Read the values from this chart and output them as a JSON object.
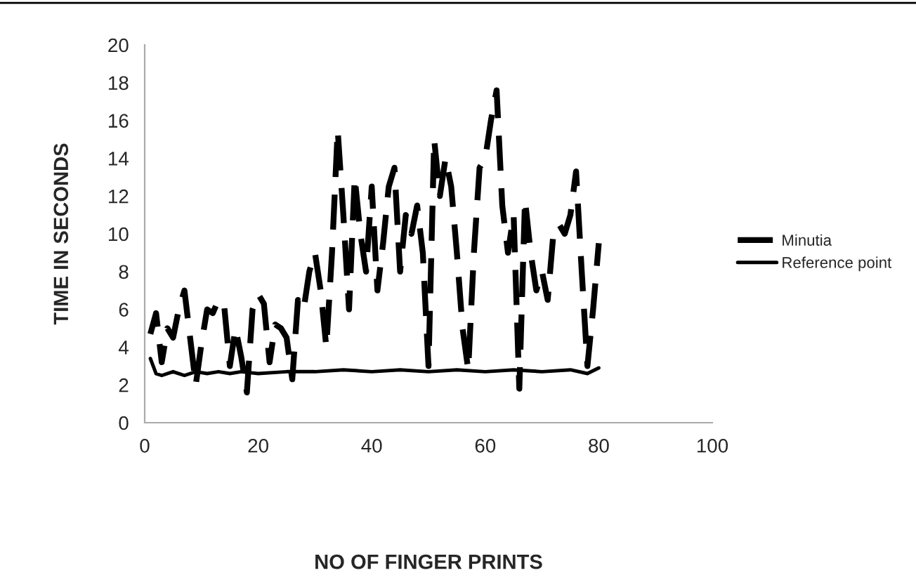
{
  "chart_data": {
    "type": "line",
    "xlabel": "NO OF FINGER PRINTS",
    "ylabel": "TIME IN SECONDS",
    "xlim": [
      0,
      100
    ],
    "xticks": [
      0,
      20,
      40,
      60,
      80,
      100
    ],
    "ylim": [
      0,
      20
    ],
    "yticks": [
      0,
      2,
      4,
      6,
      8,
      10,
      12,
      14,
      16,
      18,
      20
    ],
    "grid": false,
    "legend": "right",
    "marker": "none",
    "series": [
      {
        "name": "Minutia",
        "color": "#000000",
        "line_style": "dashed",
        "x": [
          1,
          2,
          3,
          4,
          5,
          6,
          7,
          8,
          9,
          10,
          11,
          12,
          13,
          14,
          15,
          16,
          17,
          18,
          19,
          20,
          21,
          22,
          23,
          24,
          25,
          26,
          27,
          28,
          29,
          30,
          31,
          32,
          33,
          34,
          35,
          36,
          37,
          38,
          39,
          40,
          41,
          42,
          43,
          44,
          45,
          46,
          47,
          48,
          49,
          50,
          51,
          52,
          53,
          54,
          55,
          56,
          57,
          58,
          59,
          60,
          61,
          62,
          63,
          64,
          65,
          66,
          67,
          68,
          69,
          70,
          71,
          72,
          73,
          74,
          75,
          76,
          77,
          78,
          79,
          80
        ],
        "values": [
          4.7,
          5.8,
          3.2,
          5.0,
          4.5,
          6.0,
          7.0,
          4.5,
          2.0,
          4.2,
          6.0,
          5.8,
          6.5,
          6.2,
          3.0,
          5.0,
          3.5,
          1.6,
          6.0,
          6.8,
          6.3,
          3.2,
          5.2,
          5.0,
          4.5,
          2.3,
          6.5,
          6.0,
          8.0,
          9.0,
          7.0,
          4.0,
          9.0,
          15.5,
          11.0,
          6.0,
          13.0,
          10.0,
          8.0,
          12.5,
          7.0,
          9.5,
          12.5,
          13.5,
          8.0,
          11.0,
          10.0,
          11.5,
          9.0,
          3.0,
          15.0,
          12.0,
          14.0,
          12.5,
          9.0,
          5.0,
          2.8,
          9.0,
          13.5,
          14.0,
          16.0,
          17.6,
          11.5,
          9.0,
          11.0,
          1.8,
          11.8,
          9.0,
          7.0,
          8.0,
          6.5,
          10.0,
          10.5,
          10.0,
          11.0,
          13.3,
          8.0,
          3.0,
          6.0,
          9.5
        ]
      },
      {
        "name": "Reference point",
        "color": "#000000",
        "line_style": "solid",
        "x": [
          1,
          2,
          3,
          5,
          7,
          9,
          11,
          13,
          15,
          17,
          20,
          25,
          30,
          35,
          40,
          45,
          50,
          55,
          60,
          65,
          70,
          75,
          78,
          80
        ],
        "values": [
          3.4,
          2.6,
          2.5,
          2.7,
          2.5,
          2.7,
          2.6,
          2.7,
          2.6,
          2.7,
          2.6,
          2.7,
          2.7,
          2.8,
          2.7,
          2.8,
          2.7,
          2.8,
          2.7,
          2.8,
          2.7,
          2.8,
          2.6,
          2.9
        ]
      }
    ]
  }
}
